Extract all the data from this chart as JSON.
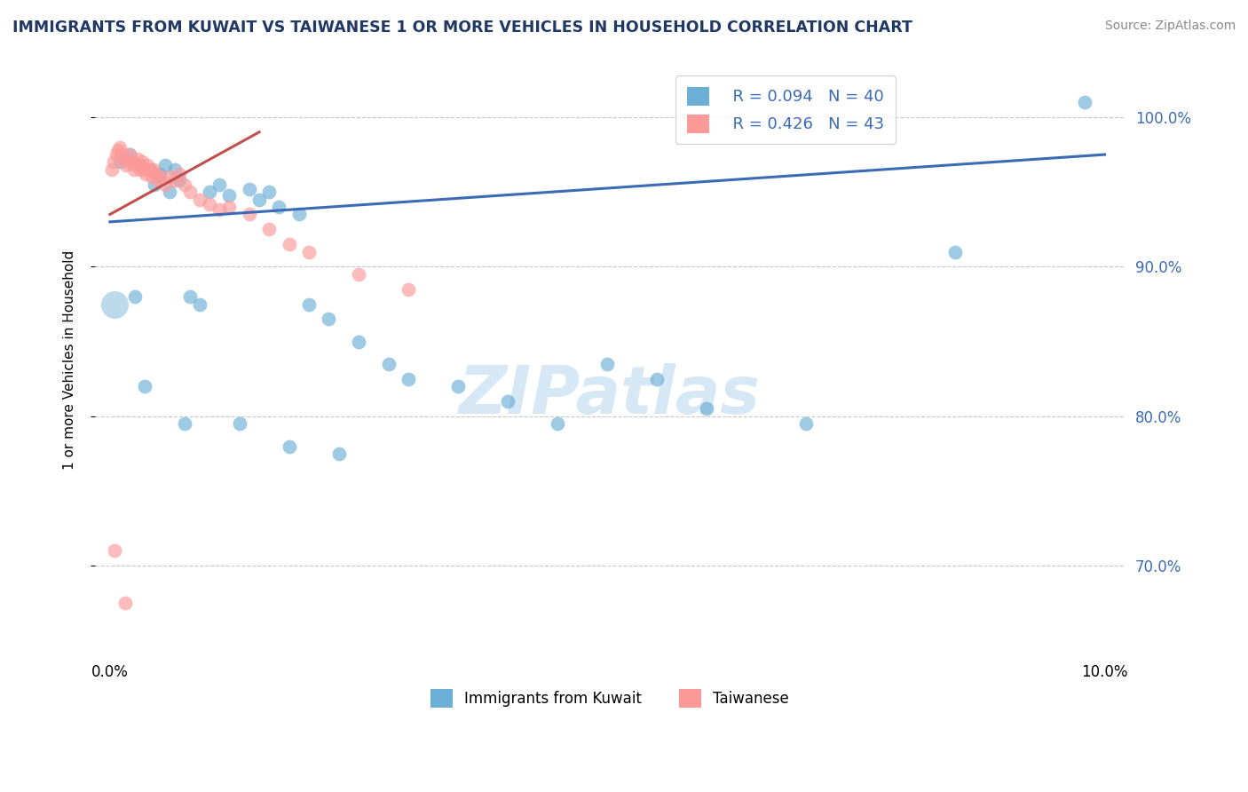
{
  "title": "IMMIGRANTS FROM KUWAIT VS TAIWANESE 1 OR MORE VEHICLES IN HOUSEHOLD CORRELATION CHART",
  "source": "Source: ZipAtlas.com",
  "ylabel": "1 or more Vehicles in Household",
  "xlim": [
    -0.15,
    10.2
  ],
  "ylim": [
    64.0,
    103.5
  ],
  "yticks": [
    70.0,
    80.0,
    90.0,
    100.0
  ],
  "ytick_labels": [
    "70.0%",
    "80.0%",
    "90.0%",
    "100.0%"
  ],
  "legend1_r": "R = 0.094",
  "legend1_n": "N = 40",
  "legend2_r": "R = 0.426",
  "legend2_n": "N = 43",
  "legend_label1": "Immigrants from Kuwait",
  "legend_label2": "Taiwanese",
  "blue_color": "#6BAED6",
  "pink_color": "#FC9999",
  "line_blue": "#3A6BB5",
  "line_pink": "#C0504D",
  "watermark_color": "#D6E8F5",
  "blue_scatter_x": [
    0.1,
    0.2,
    0.3,
    0.4,
    0.45,
    0.5,
    0.55,
    0.6,
    0.65,
    0.7,
    0.8,
    0.9,
    1.0,
    1.1,
    1.2,
    1.4,
    1.5,
    1.6,
    1.7,
    1.9,
    2.0,
    2.2,
    2.5,
    2.8,
    3.0,
    3.5,
    4.0,
    4.5,
    5.0,
    5.5,
    6.0,
    7.0,
    8.5,
    9.8,
    0.25,
    0.35,
    0.75,
    1.3,
    1.8,
    2.3
  ],
  "blue_scatter_y": [
    97.0,
    97.5,
    96.8,
    96.5,
    95.5,
    96.2,
    96.8,
    95.0,
    96.5,
    95.8,
    88.0,
    87.5,
    95.0,
    95.5,
    94.8,
    95.2,
    94.5,
    95.0,
    94.0,
    93.5,
    87.5,
    86.5,
    85.0,
    83.5,
    82.5,
    82.0,
    81.0,
    79.5,
    83.5,
    82.5,
    80.5,
    79.5,
    91.0,
    101.0,
    88.0,
    82.0,
    79.5,
    79.5,
    78.0,
    77.5
  ],
  "pink_scatter_x": [
    0.02,
    0.04,
    0.06,
    0.08,
    0.1,
    0.12,
    0.14,
    0.16,
    0.18,
    0.2,
    0.22,
    0.24,
    0.26,
    0.28,
    0.3,
    0.32,
    0.34,
    0.36,
    0.38,
    0.4,
    0.42,
    0.44,
    0.46,
    0.48,
    0.5,
    0.55,
    0.6,
    0.65,
    0.7,
    0.75,
    0.8,
    0.9,
    1.0,
    1.1,
    1.2,
    1.4,
    1.6,
    1.8,
    2.0,
    2.5,
    3.0,
    0.05,
    0.15
  ],
  "pink_scatter_y": [
    96.5,
    97.0,
    97.5,
    97.8,
    98.0,
    97.5,
    97.2,
    96.8,
    97.0,
    97.5,
    97.0,
    96.5,
    96.8,
    97.2,
    96.5,
    97.0,
    96.5,
    96.2,
    96.8,
    96.5,
    96.0,
    96.5,
    96.2,
    95.8,
    96.0,
    95.5,
    96.0,
    95.8,
    96.2,
    95.5,
    95.0,
    94.5,
    94.2,
    93.8,
    94.0,
    93.5,
    92.5,
    91.5,
    91.0,
    89.5,
    88.5,
    71.0,
    67.5
  ],
  "blue_line_x0": 0.0,
  "blue_line_y0": 93.0,
  "blue_line_x1": 10.0,
  "blue_line_y1": 97.5,
  "pink_line_x0": 0.0,
  "pink_line_y0": 93.5,
  "pink_line_x1": 1.5,
  "pink_line_y1": 99.0,
  "large_blue_x": 0.05,
  "large_blue_y": 87.5,
  "large_blue_s": 500
}
